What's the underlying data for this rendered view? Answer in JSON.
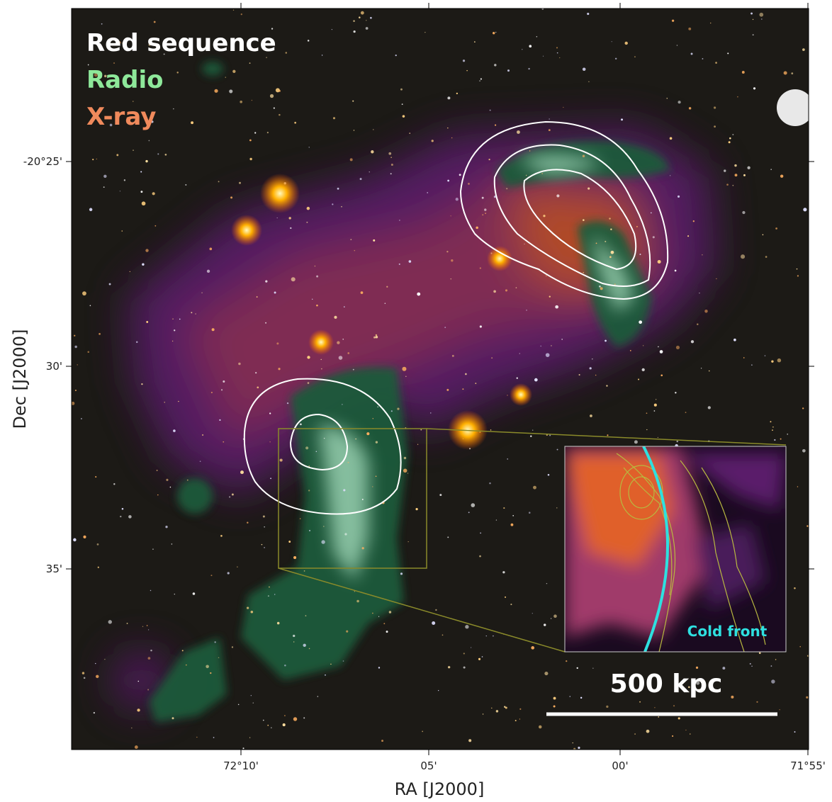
{
  "legend": {
    "red_sequence": "Red sequence",
    "radio": "Radio",
    "xray": "X-ray"
  },
  "axes": {
    "x_label": "RA [J2000]",
    "y_label": "Dec [J2000]",
    "x_ticks": [
      "72°10'",
      "05'",
      "00'",
      "71°55'"
    ],
    "y_ticks": [
      "-20°25'",
      "30'",
      "35'"
    ]
  },
  "inset": {
    "annotation": "Cold front"
  },
  "scale_bar": {
    "label": "500 kpc"
  }
}
